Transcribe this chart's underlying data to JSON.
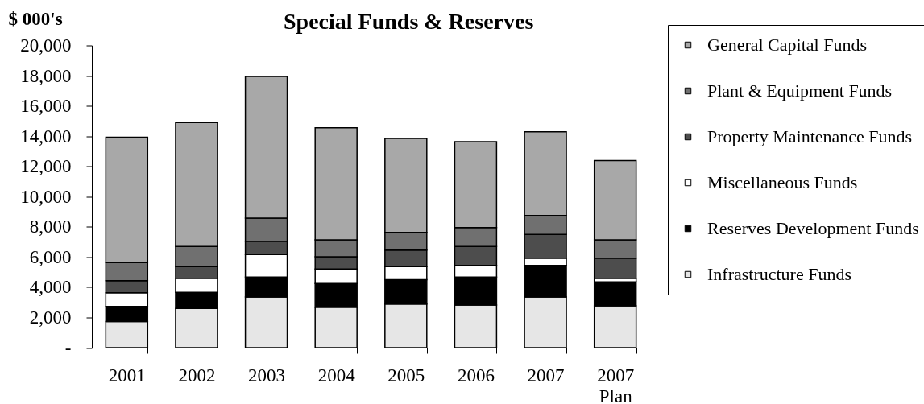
{
  "chart_data": {
    "type": "bar",
    "title": "Special Funds & Reserves",
    "ylabel": "$ 000's",
    "categories": [
      "2001",
      "2002",
      "2003",
      "2004",
      "2005",
      "2006",
      "2007",
      "2007 Plan"
    ],
    "stacked": true,
    "series": [
      {
        "name": "Infrastructure Funds",
        "color": "#e6e6e6",
        "values": [
          1730,
          2590,
          3360,
          2680,
          2890,
          2820,
          3360,
          2770
        ]
      },
      {
        "name": "Reserves Development Funds",
        "color": "#000000",
        "values": [
          1000,
          1070,
          1320,
          1570,
          1610,
          1860,
          2090,
          1590
        ]
      },
      {
        "name": "Miscellaneous Funds",
        "color": "#ffffff",
        "values": [
          900,
          930,
          1480,
          960,
          860,
          770,
          480,
          230
        ]
      },
      {
        "name": "Property Maintenance Funds",
        "color": "#4d4d4d",
        "values": [
          800,
          770,
          890,
          810,
          1100,
          1250,
          1570,
          1340
        ]
      },
      {
        "name": "Plant & Equipment Funds",
        "color": "#707070",
        "values": [
          1200,
          1340,
          1520,
          1120,
          1170,
          1250,
          1250,
          1210
        ]
      },
      {
        "name": "General Capital Funds",
        "color": "#a8a8a8",
        "values": [
          8300,
          8200,
          9380,
          7420,
          6220,
          5680,
          5540,
          5240
        ]
      }
    ],
    "ylim": [
      0,
      20000
    ],
    "yticks": [
      {
        "value": 0,
        "label": "-"
      },
      {
        "value": 2000,
        "label": "2,000"
      },
      {
        "value": 4000,
        "label": "4,000"
      },
      {
        "value": 6000,
        "label": "6,000"
      },
      {
        "value": 8000,
        "label": "8,000"
      },
      {
        "value": 10000,
        "label": "10,000"
      },
      {
        "value": 12000,
        "label": "12,000"
      },
      {
        "value": 14000,
        "label": "14,000"
      },
      {
        "value": 16000,
        "label": "16,000"
      },
      {
        "value": 18000,
        "label": "18,000"
      },
      {
        "value": 20000,
        "label": "20,000"
      }
    ],
    "grid": false,
    "legend": "right"
  }
}
